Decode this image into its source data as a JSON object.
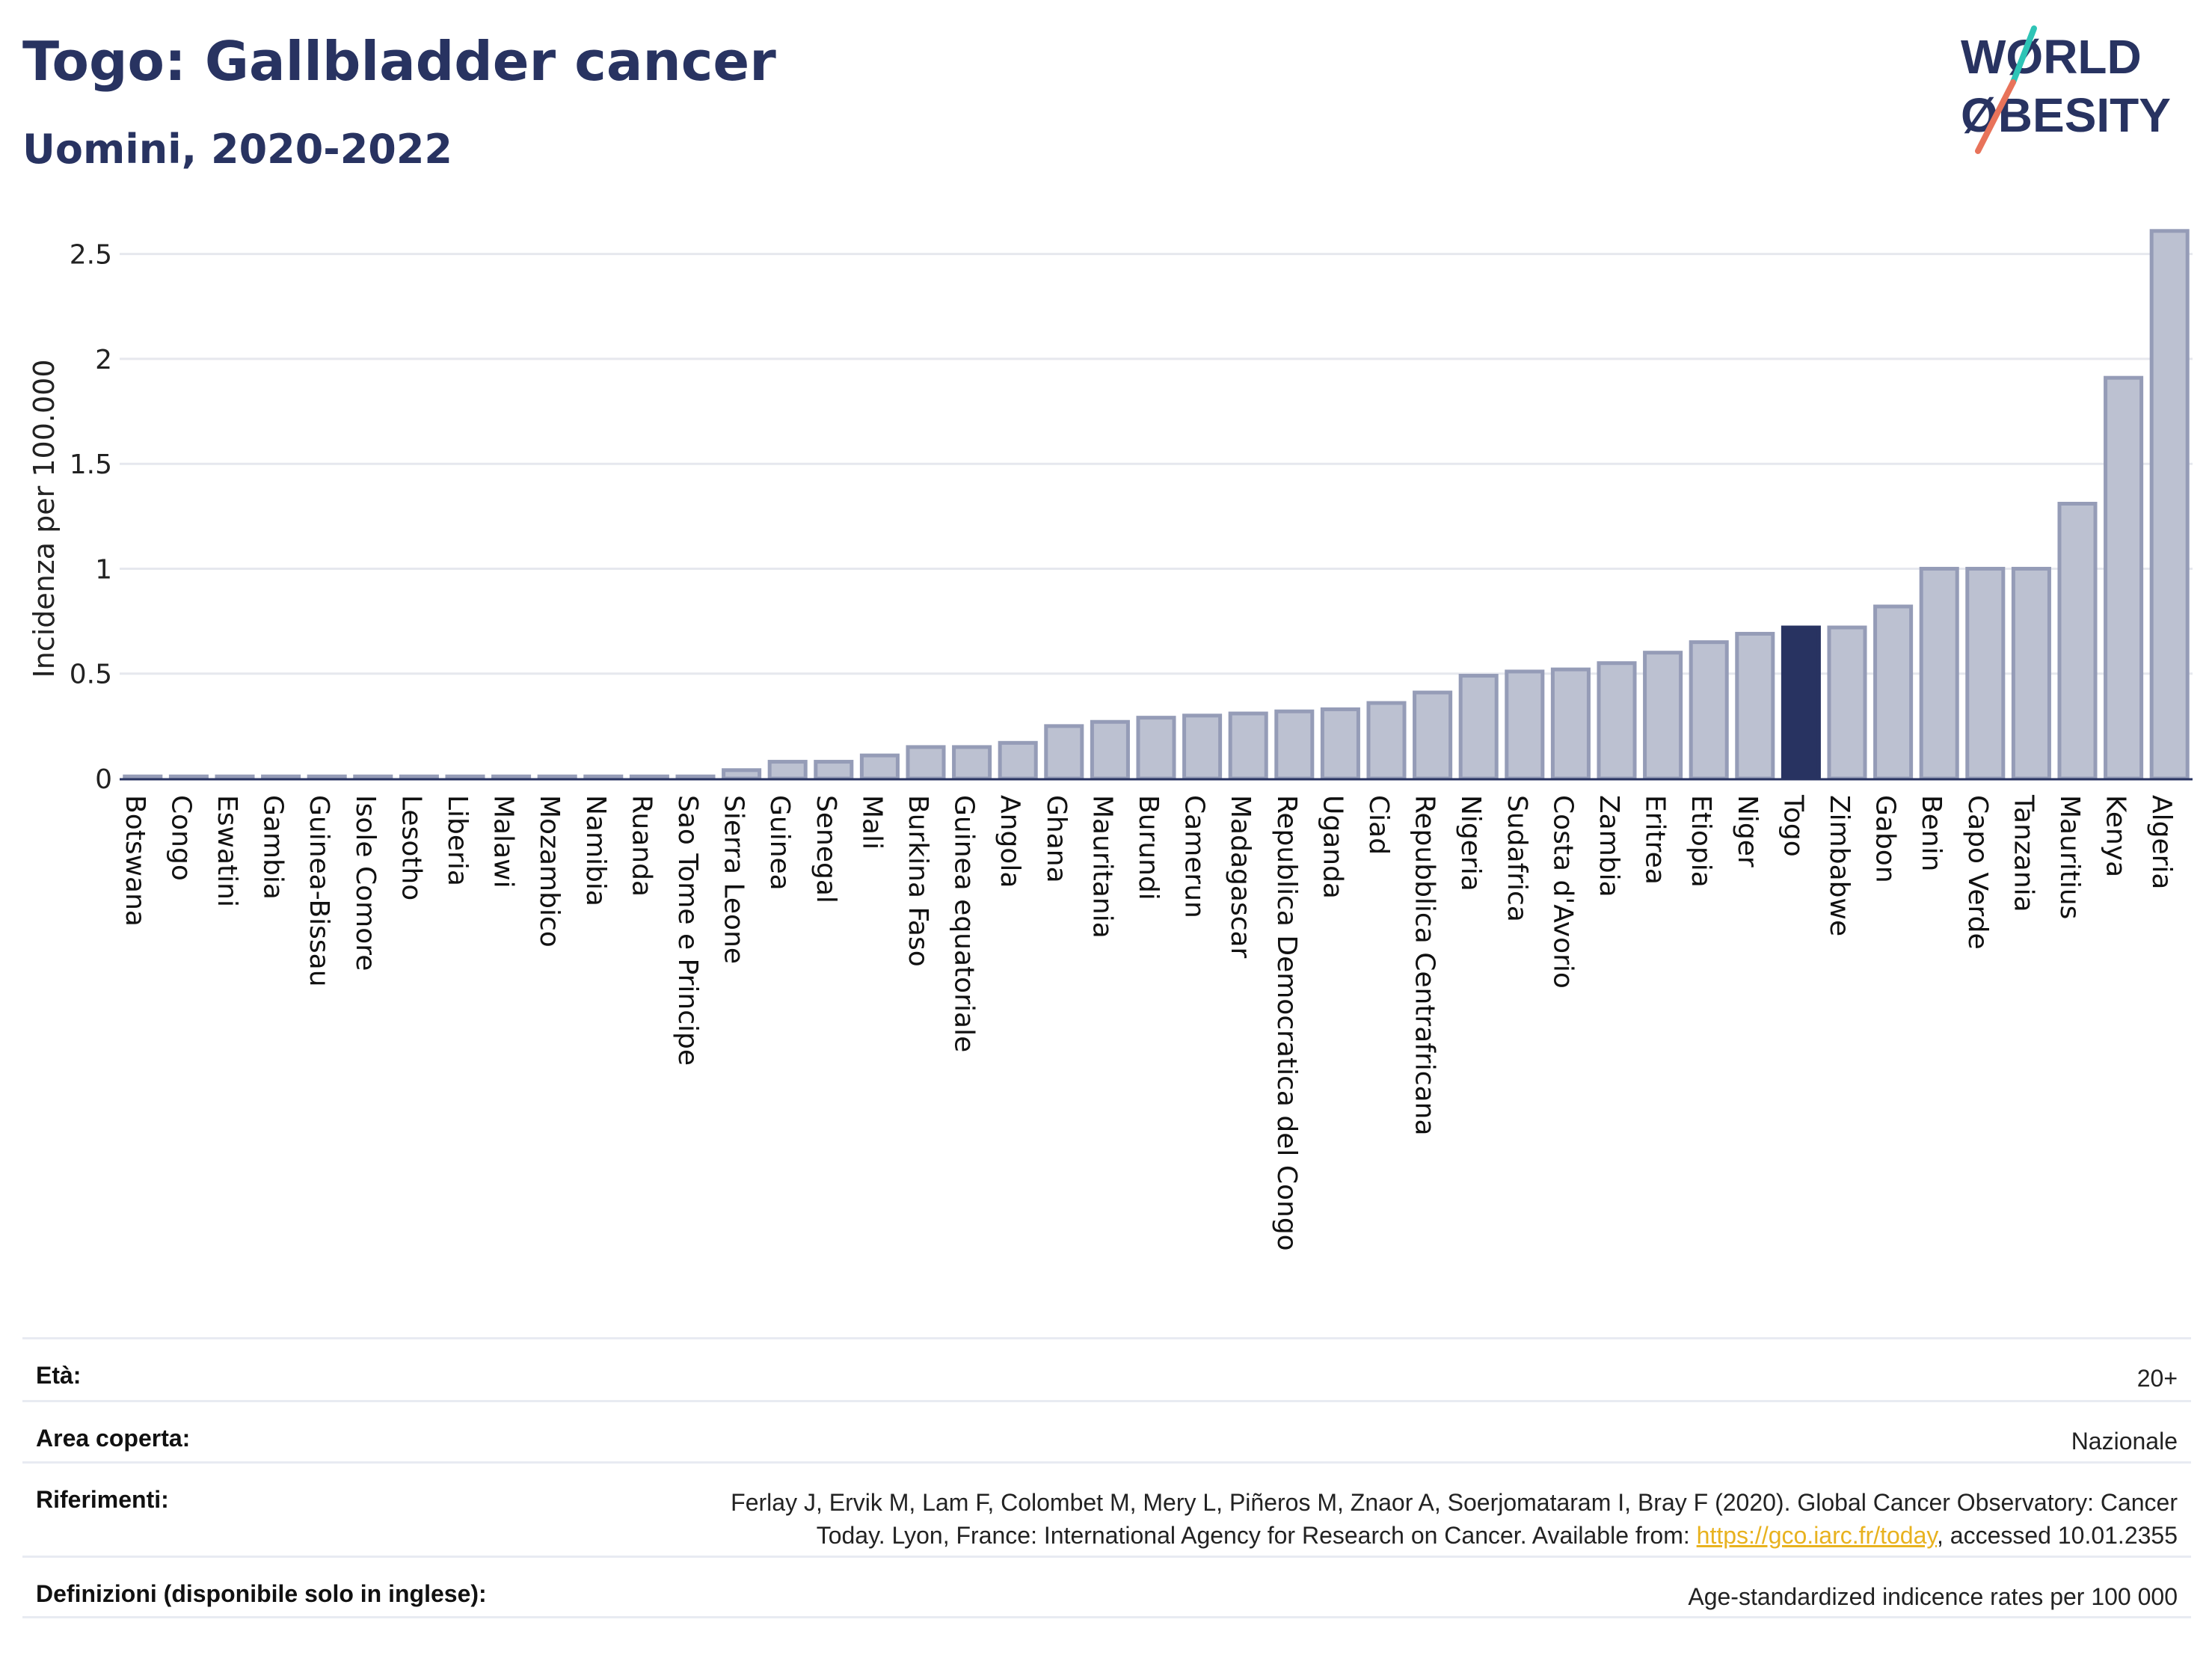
{
  "header": {
    "title": "Togo: Gallbladder cancer",
    "subtitle": "Uomini, 2020-2022"
  },
  "logo": {
    "line1": "WØRLD",
    "line2": "ØBESITY",
    "icon": "world-obesity-logo",
    "accent_colors": [
      "#2ec4b6",
      "#e8735a"
    ]
  },
  "colors": {
    "bar": "#bcc1d1",
    "bar_border": "#959cb7",
    "highlight": "#283361",
    "grid": "#e6e8ee",
    "axis": "#283361"
  },
  "chart_data": {
    "type": "bar",
    "title": "Togo: Gallbladder cancer",
    "subtitle": "Uomini, 2020-2022",
    "ylabel": "Incidenza per 100.000",
    "xlabel": "",
    "ylim": [
      0,
      2.62
    ],
    "yticks": [
      0,
      0.5,
      1,
      1.5,
      2,
      2.5
    ],
    "ytick_labels": [
      "0",
      "0.5",
      "1",
      "1.5",
      "2",
      "2.5"
    ],
    "grid": true,
    "highlight": "Togo",
    "categories": [
      "Botswana",
      "Congo",
      "Eswatini",
      "Gambia",
      "Guinea-Bissau",
      "Isole Comore",
      "Lesotho",
      "Liberia",
      "Malawi",
      "Mozambico",
      "Namibia",
      "Ruanda",
      "Sao Tome e Principe",
      "Sierra Leone",
      "Guinea",
      "Senegal",
      "Mali",
      "Burkina Faso",
      "Guinea equatoriale",
      "Angola",
      "Ghana",
      "Mauritania",
      "Burundi",
      "Camerun",
      "Madagascar",
      "Republica Democratica del Congo",
      "Uganda",
      "Ciad",
      "Repubblica Centrafricana",
      "Nigeria",
      "Sudafrica",
      "Costa d'Avorio",
      "Zambia",
      "Eritrea",
      "Etiopia",
      "Niger",
      "Togo",
      "Zimbabwe",
      "Gabon",
      "Benin",
      "Capo Verde",
      "Tanzania",
      "Mauritius",
      "Kenya",
      "Algeria"
    ],
    "values": [
      0.01,
      0.01,
      0.01,
      0.01,
      0.01,
      0.01,
      0.01,
      0.01,
      0.01,
      0.01,
      0.01,
      0.01,
      0.01,
      0.04,
      0.08,
      0.08,
      0.11,
      0.15,
      0.15,
      0.17,
      0.25,
      0.27,
      0.29,
      0.3,
      0.31,
      0.32,
      0.33,
      0.36,
      0.41,
      0.49,
      0.51,
      0.52,
      0.55,
      0.6,
      0.65,
      0.69,
      0.72,
      0.72,
      0.82,
      1.0,
      1.0,
      1.0,
      1.31,
      1.91,
      2.61
    ]
  },
  "footer": {
    "rows": [
      {
        "label": "Età:",
        "value": "20+"
      },
      {
        "label": "Area coperta:",
        "value": "Nazionale"
      },
      {
        "label": "Riferimenti:",
        "value_line1": "Ferlay J, Ervik M, Lam F, Colombet M, Mery L, Piñeros M, Znaor A, Soerjomataram I, Bray F (2020). Global Cancer Observatory: Cancer",
        "value_line2_pre": "Today. Lyon, France: International Agency for Research on Cancer. Available from: ",
        "link": "https://gco.iarc.fr/today",
        "value_line2_post": ", accessed 10.01.2355"
      },
      {
        "label": "Definizioni (disponibile solo in inglese):",
        "value": "Age-standardized indicence rates per 100 000"
      }
    ]
  }
}
